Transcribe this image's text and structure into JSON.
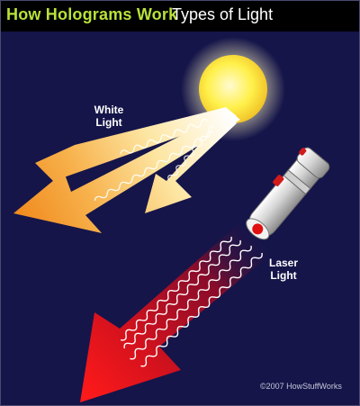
{
  "header": {
    "title": "How Holograms Work",
    "subtitle": "Types of Light"
  },
  "labels": {
    "white_light": [
      "White",
      "Light"
    ],
    "laser_light": [
      "Laser",
      "Light"
    ]
  },
  "credit": "©2007 HowStuffWorks",
  "colors": {
    "background": "#15154a",
    "header_bar": "#000000",
    "title_green": "#b9e23a",
    "sun": "#fff04a",
    "white_beam": "#f7a93b",
    "laser_beam": "#e3141c"
  }
}
